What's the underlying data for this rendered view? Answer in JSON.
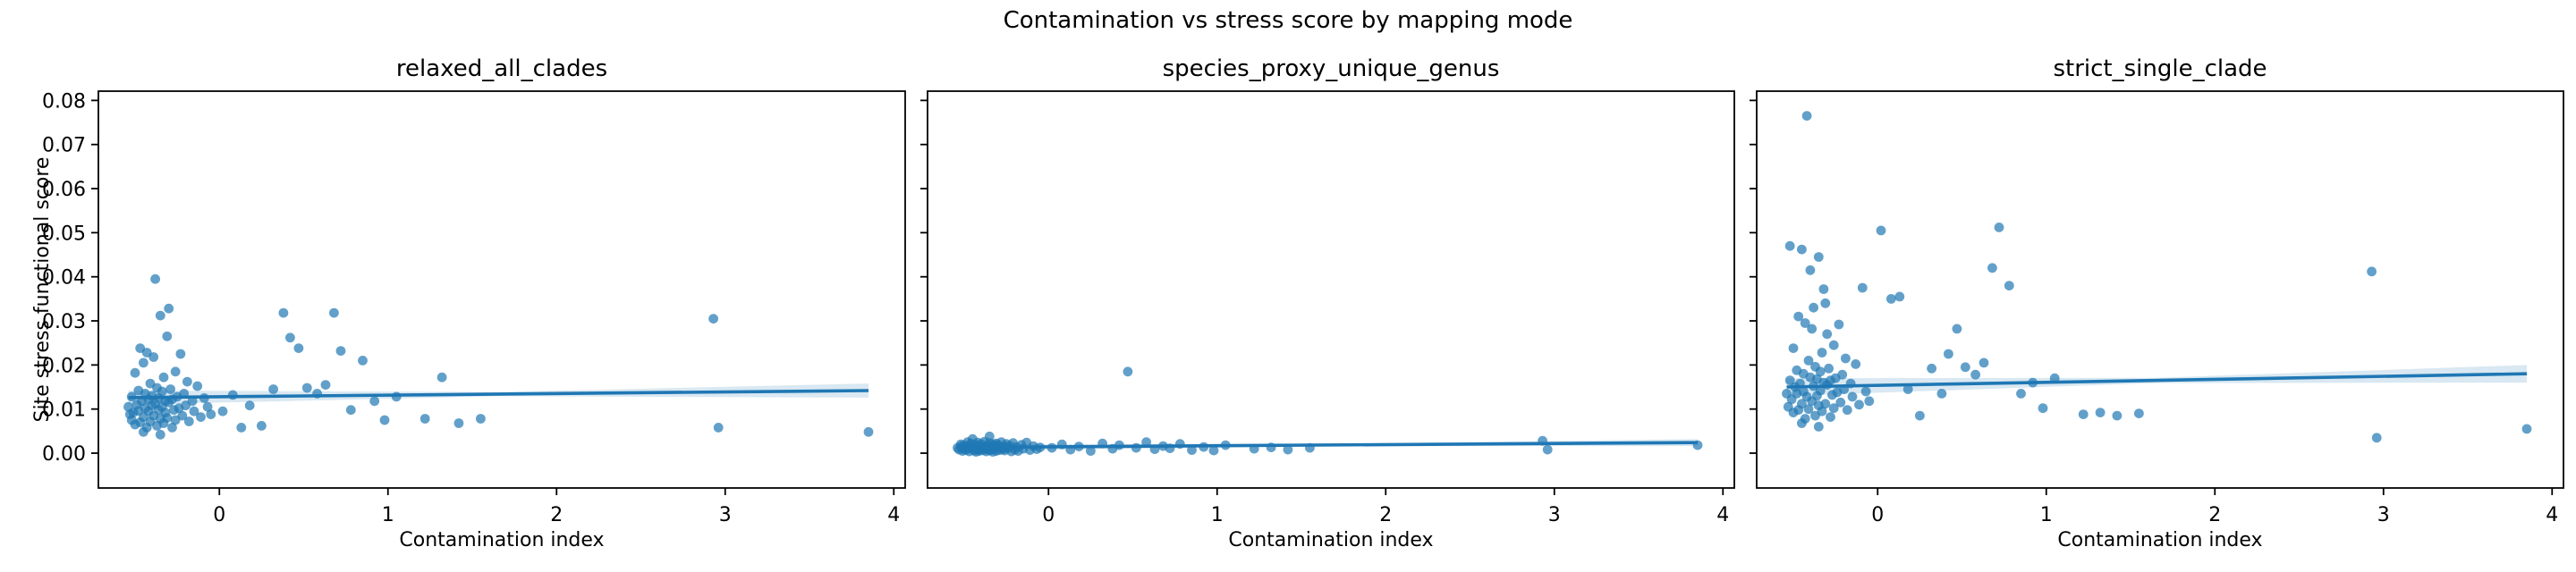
{
  "figure": {
    "suptitle": "Contamination vs stress score by mapping mode",
    "xlabel": "Contamination index",
    "ylabel": "Site stress functional score"
  },
  "chart_data": {
    "type": "scatter",
    "title": "Contamination vs stress score by mapping mode",
    "xlabel": "Contamination index",
    "ylabel": "Site stress functional score",
    "xlim": [
      -0.7175,
      4.0675
    ],
    "ylim": [
      -0.0079,
      0.0821
    ],
    "xticks": [
      0,
      1,
      2,
      3,
      4
    ],
    "xticklabels": [
      "0",
      "1",
      "2",
      "3",
      "4"
    ],
    "yticks": [
      0.0,
      0.01,
      0.02,
      0.03,
      0.04,
      0.05,
      0.06,
      0.07,
      0.08
    ],
    "yticklabels": [
      "0.00",
      "0.01",
      "0.02",
      "0.03",
      "0.04",
      "0.05",
      "0.06",
      "0.07",
      "0.08"
    ],
    "grid": false,
    "legend": "none",
    "marker_color": "#1f77b4",
    "marker_opacity": 0.7,
    "line_color": "#1f77b4",
    "panels": [
      {
        "title": "relaxed_all_clades",
        "series_index": 1,
        "trend": {
          "x0": -0.54,
          "x1": 3.85,
          "y0": 0.0126,
          "y1": 0.0142,
          "ci": 0.0016
        }
      },
      {
        "title": "species_proxy_unique_genus",
        "series_index": 2,
        "trend": {
          "x0": -0.54,
          "x1": 3.85,
          "y0": 0.0013,
          "y1": 0.0024,
          "ci": 0.0008
        }
      },
      {
        "title": "strict_single_clade",
        "series_index": 3,
        "trend": {
          "x0": -0.54,
          "x1": 3.85,
          "y0": 0.015,
          "y1": 0.018,
          "ci": 0.002
        }
      }
    ],
    "points_format": [
      "contamination_index",
      "y_relaxed_all_clades",
      "y_species_proxy_unique_genus",
      "y_strict_single_clade"
    ],
    "points": [
      [
        -0.54,
        0.0105,
        0.0012,
        0.0135
      ],
      [
        -0.53,
        0.0088,
        0.0008,
        0.0105
      ],
      [
        -0.52,
        0.0075,
        0.0015,
        0.047
      ],
      [
        -0.52,
        0.0128,
        0.002,
        0.0165
      ],
      [
        -0.51,
        0.0092,
        0.0005,
        0.0122
      ],
      [
        -0.5,
        0.0182,
        0.001,
        0.0238
      ],
      [
        -0.5,
        0.0065,
        0.0018,
        0.0092
      ],
      [
        -0.49,
        0.011,
        0.0007,
        0.015
      ],
      [
        -0.48,
        0.0142,
        0.0025,
        0.0188
      ],
      [
        -0.48,
        0.0096,
        0.0012,
        0.0135
      ],
      [
        -0.47,
        0.0238,
        0.0016,
        0.031
      ],
      [
        -0.47,
        0.007,
        0.0004,
        0.0098
      ],
      [
        -0.46,
        0.0118,
        0.0022,
        0.0158
      ],
      [
        -0.45,
        0.0205,
        0.0009,
        0.0462
      ],
      [
        -0.45,
        0.0082,
        0.0014,
        0.0112
      ],
      [
        -0.45,
        0.0048,
        0.0032,
        0.0068
      ],
      [
        -0.44,
        0.0135,
        0.0006,
        0.018
      ],
      [
        -0.44,
        0.0102,
        0.0019,
        0.014
      ],
      [
        -0.43,
        0.0228,
        0.0011,
        0.0295
      ],
      [
        -0.43,
        0.0058,
        0.0003,
        0.0078
      ],
      [
        -0.42,
        0.0122,
        0.0024,
        0.0765
      ],
      [
        -0.42,
        0.0095,
        0.0008,
        0.0128
      ],
      [
        -0.41,
        0.0158,
        0.0017,
        0.021
      ],
      [
        -0.41,
        0.0072,
        0.0005,
        0.01
      ],
      [
        -0.4,
        0.013,
        0.0021,
        0.0172
      ],
      [
        -0.4,
        0.0108,
        0.001,
        0.0415
      ],
      [
        -0.39,
        0.0218,
        0.0013,
        0.0282
      ],
      [
        -0.39,
        0.0085,
        0.0007,
        0.0118
      ],
      [
        -0.38,
        0.0395,
        0.0015,
        0.033
      ],
      [
        -0.38,
        0.0112,
        0.0026,
        0.0152
      ],
      [
        -0.37,
        0.0148,
        0.0009,
        0.0196
      ],
      [
        -0.37,
        0.0062,
        0.0004,
        0.0085
      ],
      [
        -0.36,
        0.0125,
        0.0018,
        0.0168
      ],
      [
        -0.36,
        0.0098,
        0.0011,
        0.013
      ],
      [
        -0.35,
        0.0312,
        0.0023,
        0.0445
      ],
      [
        -0.35,
        0.0078,
        0.0006,
        0.0108
      ],
      [
        -0.35,
        0.0042,
        0.0038,
        0.006
      ],
      [
        -0.34,
        0.014,
        0.0014,
        0.0185
      ],
      [
        -0.34,
        0.0105,
        0.0008,
        0.0142
      ],
      [
        -0.33,
        0.0172,
        0.002,
        0.0228
      ],
      [
        -0.33,
        0.0068,
        0.0003,
        0.0095
      ],
      [
        -0.32,
        0.0118,
        0.0016,
        0.016
      ],
      [
        -0.32,
        0.0092,
        0.001,
        0.0372
      ],
      [
        -0.31,
        0.0265,
        0.0022,
        0.034
      ],
      [
        -0.31,
        0.008,
        0.0005,
        0.0112
      ],
      [
        -0.3,
        0.0328,
        0.0012,
        0.027
      ],
      [
        -0.3,
        0.0115,
        0.0019,
        0.0155
      ],
      [
        -0.29,
        0.0145,
        0.0007,
        0.0192
      ],
      [
        -0.28,
        0.0058,
        0.0013,
        0.0082
      ],
      [
        -0.28,
        0.0122,
        0.0025,
        0.0165
      ],
      [
        -0.27,
        0.0098,
        0.0009,
        0.0132
      ],
      [
        -0.26,
        0.0185,
        0.0015,
        0.0245
      ],
      [
        -0.26,
        0.0075,
        0.0006,
        0.0102
      ],
      [
        -0.25,
        0.0128,
        0.0021,
        0.017
      ],
      [
        -0.24,
        0.0102,
        0.0011,
        0.0138
      ],
      [
        -0.23,
        0.0225,
        0.0017,
        0.0292
      ],
      [
        -0.22,
        0.0085,
        0.0004,
        0.0115
      ],
      [
        -0.21,
        0.0135,
        0.0023,
        0.0178
      ],
      [
        -0.2,
        0.0108,
        0.0008,
        0.0145
      ],
      [
        -0.19,
        0.0162,
        0.0014,
        0.0215
      ],
      [
        -0.18,
        0.0072,
        0.0005,
        0.0098
      ],
      [
        -0.16,
        0.0118,
        0.0019,
        0.0158
      ],
      [
        -0.15,
        0.0095,
        0.001,
        0.0128
      ],
      [
        -0.13,
        0.0152,
        0.0024,
        0.0202
      ],
      [
        -0.11,
        0.0082,
        0.0007,
        0.011
      ],
      [
        -0.09,
        0.0125,
        0.0016,
        0.0375
      ],
      [
        -0.07,
        0.0105,
        0.0009,
        0.014
      ],
      [
        -0.05,
        0.0088,
        0.0013,
        0.0118
      ],
      [
        0.02,
        0.0095,
        0.0012,
        0.0505
      ],
      [
        0.08,
        0.0132,
        0.002,
        0.035
      ],
      [
        0.13,
        0.0058,
        0.0008,
        0.0355
      ],
      [
        0.18,
        0.0108,
        0.0015,
        0.0145
      ],
      [
        0.25,
        0.0062,
        0.0005,
        0.0085
      ],
      [
        0.32,
        0.0145,
        0.0022,
        0.0192
      ],
      [
        0.38,
        0.0318,
        0.001,
        0.0135
      ],
      [
        0.42,
        0.0262,
        0.0018,
        0.0225
      ],
      [
        0.47,
        0.0238,
        0.0185,
        0.0282
      ],
      [
        0.52,
        0.0148,
        0.0012,
        0.0195
      ],
      [
        0.58,
        0.0135,
        0.0025,
        0.0178
      ],
      [
        0.63,
        0.0155,
        0.0009,
        0.0205
      ],
      [
        0.68,
        0.0318,
        0.0016,
        0.042
      ],
      [
        0.72,
        0.0232,
        0.0011,
        0.0512
      ],
      [
        0.78,
        0.0098,
        0.0021,
        0.038
      ],
      [
        0.85,
        0.021,
        0.0007,
        0.0135
      ],
      [
        0.92,
        0.0118,
        0.0014,
        0.016
      ],
      [
        0.98,
        0.0075,
        0.0006,
        0.0102
      ],
      [
        1.05,
        0.0128,
        0.0018,
        0.017
      ],
      [
        1.22,
        0.0078,
        0.001,
        0.0088
      ],
      [
        1.32,
        0.0172,
        0.0013,
        0.0092
      ],
      [
        1.42,
        0.0068,
        0.0008,
        0.0085
      ],
      [
        1.55,
        0.0078,
        0.0012,
        0.009
      ],
      [
        2.93,
        0.0305,
        0.0028,
        0.0412
      ],
      [
        2.96,
        0.0058,
        0.0008,
        0.0035
      ],
      [
        3.85,
        0.0048,
        0.0018,
        0.0055
      ]
    ]
  }
}
